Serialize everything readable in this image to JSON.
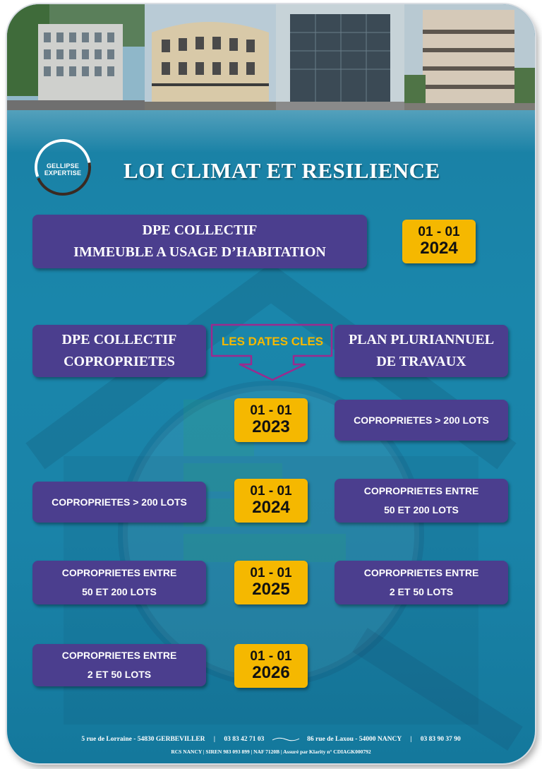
{
  "header": {
    "title": "LOI CLIMAT ET RESILIENCE",
    "logo_text": "GELLIPSE EXPERTISE"
  },
  "top_block": {
    "line1": "DPE COLLECTIF",
    "line2": "IMMEUBLE A USAGE D’HABITATION",
    "date_day": "01 - 01",
    "date_year": "2024"
  },
  "columns": {
    "left_line1": "DPE COLLECTIF",
    "left_line2": "COPROPRIETES",
    "center_label": "LES DATES CLES",
    "right_line1": "PLAN PLURIANNUEL",
    "right_line2": "DE TRAVAUX"
  },
  "rows": [
    {
      "date_day": "01 - 01",
      "date_year": "2023",
      "left": [],
      "right": [
        "COPROPRIETES > 200 LOTS"
      ]
    },
    {
      "date_day": "01 - 01",
      "date_year": "2024",
      "left": [
        "COPROPRIETES > 200 LOTS"
      ],
      "right": [
        "COPROPRIETES ENTRE",
        "50 ET 200 LOTS"
      ]
    },
    {
      "date_day": "01 - 01",
      "date_year": "2025",
      "left": [
        "COPROPRIETES ENTRE",
        "50 ET 200 LOTS"
      ],
      "right": [
        "COPROPRIETES ENTRE",
        "2 ET 50 LOTS"
      ]
    },
    {
      "date_day": "01 - 01",
      "date_year": "2026",
      "left": [
        "COPROPRIETES ENTRE",
        "2 ET 50 LOTS"
      ],
      "right": []
    }
  ],
  "footer": {
    "address1": "5 rue de Lorraine - 54830 GERBEVILLER",
    "phone1": "03 83 42 71 03",
    "address2": "86 rue de Laxou - 54000 NANCY",
    "phone2": "03 83 90 37 90",
    "legal": "RCS NANCY | SIREN 983 093 899 | NAF 7120B | Assuré par Klarity n° CDIAGK000792"
  },
  "colors": {
    "background": "#1a86ab",
    "box": "#4b3e8e",
    "date": "#f5b800",
    "keydates_text": "#f5b800",
    "keydates_arrow": "#9b2a8e"
  }
}
